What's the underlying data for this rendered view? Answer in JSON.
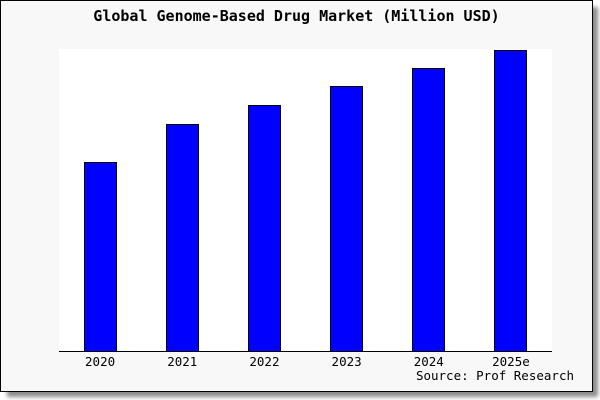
{
  "page": {
    "background_color": "#ffffff"
  },
  "card": {
    "background_color": "#f8f8f8",
    "border_color": "#000000",
    "shadow_color": "#8a8a8a"
  },
  "chart_data": {
    "type": "bar",
    "title": "Global Genome-Based Drug Market (Million USD)",
    "categories": [
      "2020",
      "2021",
      "2022",
      "2023",
      "2024",
      "2025e"
    ],
    "values_pct_of_y_range": [
      62.5,
      75.0,
      81.3,
      87.6,
      93.6,
      99.7
    ],
    "xlabel": "",
    "ylabel": "",
    "x_tick_labels": [
      "2020",
      "2021",
      "2022",
      "2023",
      "2024",
      "2025e"
    ],
    "y_tick_labels": [],
    "y_axis_labels_visible": false,
    "legend": "none",
    "grid": false,
    "plot_background": "#ffffff",
    "bar_color": "#0000ff",
    "bar_edge_color": "#000000",
    "axis_line_color": "#000000",
    "source": "Source: Prof Research"
  }
}
